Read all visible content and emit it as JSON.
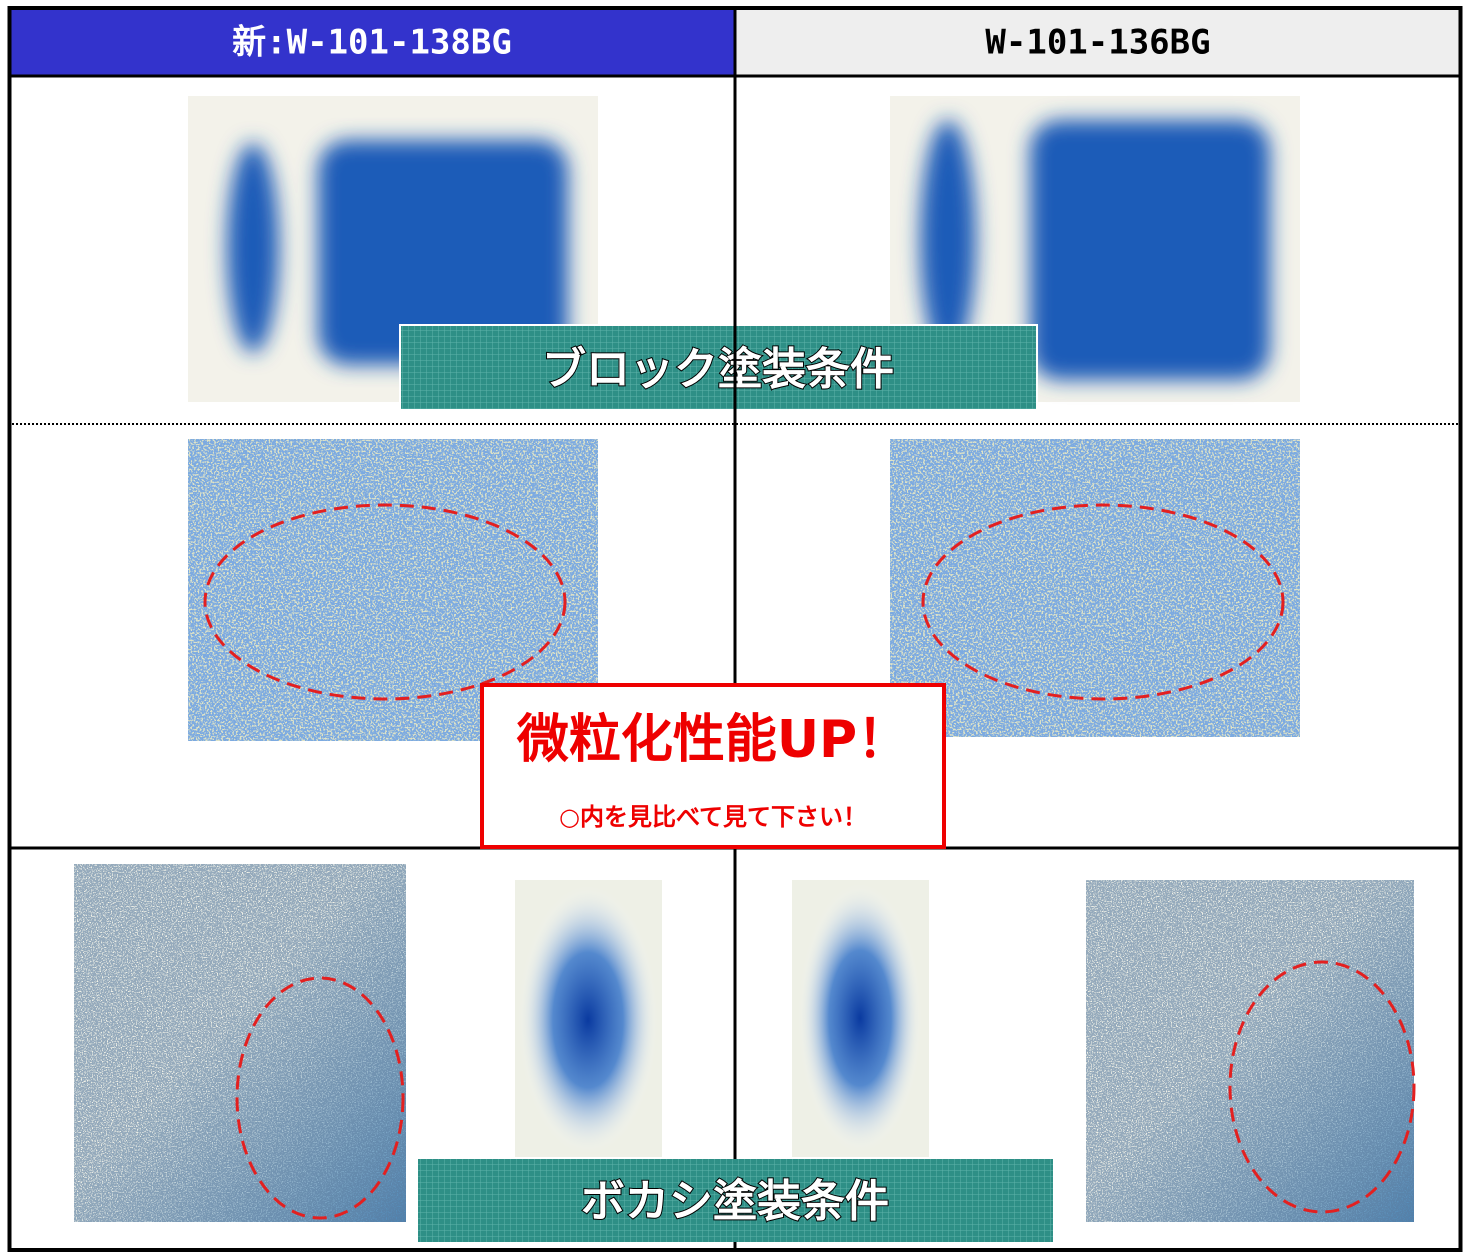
{
  "header": {
    "left_title": "新:W-101-138BG",
    "right_title": "W-101-136BG"
  },
  "labels": {
    "block": "ブロック塗装条件",
    "bokashi": "ボカシ塗装条件"
  },
  "callout": {
    "title": "微粒化性能UP！",
    "note": "○内を見比べて見て下さい！"
  }
}
